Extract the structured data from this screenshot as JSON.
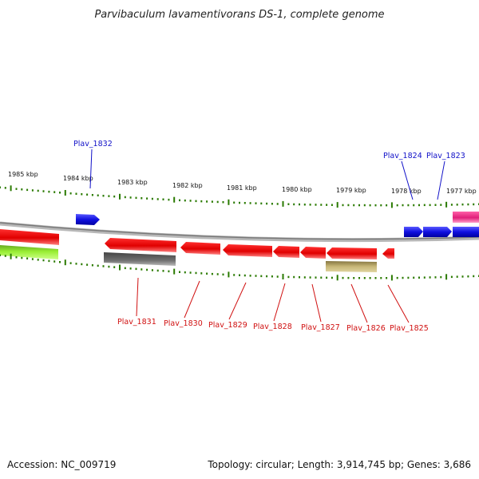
{
  "title": "Parvibaculum lavamentivorans DS-1, complete genome",
  "ticks": [
    "1985 kbp",
    "1984 kbp",
    "1983 kbp",
    "1982 kbp",
    "1981 kbp",
    "1980 kbp",
    "1979 kbp",
    "1978 kbp",
    "1977 kbp"
  ],
  "top_labels": [
    "Plav_1832",
    "Plav_1824",
    "Plav_1823"
  ],
  "bottom_labels": [
    "Plav_1831",
    "Plav_1830",
    "Plav_1829",
    "Plav_1828",
    "Plav_1827",
    "Plav_1826",
    "Plav_1825"
  ],
  "footer": {
    "accession": "Accession: NC_009719",
    "topology": "Topology: circular; Length: 3,914,745 bp; Genes: 3,686"
  },
  "colors": {
    "forward_gene": "#1010e0",
    "reverse_gene": "#e00000",
    "pink_gene": "#e0207a",
    "lime_gene": "#99dd33",
    "dark_gene": "#666666",
    "olive_gene": "#c8b878",
    "tick_green": "#2a7a00",
    "backbone": "#8a8a8a"
  }
}
